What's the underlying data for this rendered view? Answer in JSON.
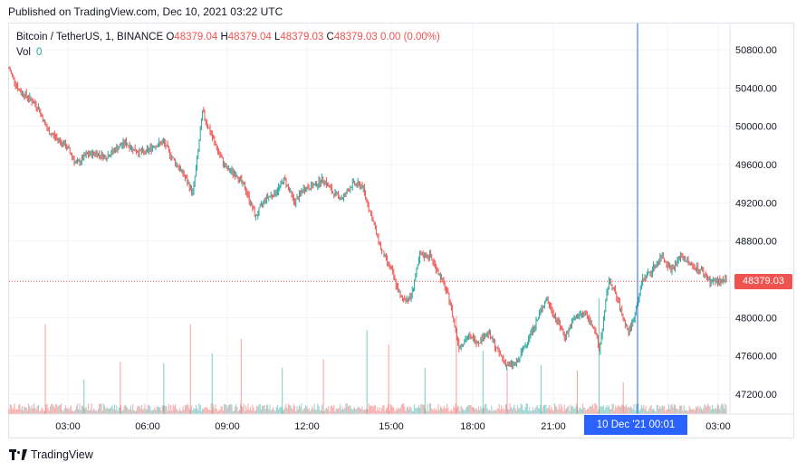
{
  "published": "Published on TradingView.com, Dec 10, 2021 03:22 UTC",
  "legend": {
    "symbol": "Bitcoin / TetherUS, 1, BINANCE",
    "o_label": "O",
    "o": "48379.04",
    "h_label": "H",
    "h": "48379.04",
    "l_label": "L",
    "l": "48379.03",
    "c_label": "C",
    "c": "48379.03",
    "change": "0.00 (0.00%)"
  },
  "volume": {
    "label": "Vol",
    "value": "0"
  },
  "last_price": "48379.03",
  "crosshair_label": "10 Dec '21   00:01",
  "brand": "TradingView",
  "colors": {
    "up": "#26a69a",
    "down": "#ef5350",
    "crosshair": "#2962ff",
    "grid": "#f0f3fa"
  },
  "chart_data": {
    "type": "candlestick",
    "yticks": [
      "47200.00",
      "47600.00",
      "48000.00",
      "48400.00",
      "48800.00",
      "49200.00",
      "49600.00",
      "50000.00",
      "50400.00",
      "50800.00"
    ],
    "xticks": [
      "03:00",
      "06:00",
      "09:00",
      "12:00",
      "15:00",
      "18:00",
      "21:00",
      "00:01",
      "03:00"
    ],
    "ylim": [
      47000,
      50950
    ],
    "price_path": [
      [
        0.0,
        50600
      ],
      [
        0.4,
        50380
      ],
      [
        0.8,
        50300
      ],
      [
        1.2,
        50200
      ],
      [
        1.6,
        49950
      ],
      [
        2.0,
        49870
      ],
      [
        2.4,
        49780
      ],
      [
        2.8,
        49600
      ],
      [
        3.2,
        49700
      ],
      [
        3.6,
        49720
      ],
      [
        4.0,
        49680
      ],
      [
        4.4,
        49760
      ],
      [
        4.8,
        49830
      ],
      [
        5.2,
        49750
      ],
      [
        5.6,
        49720
      ],
      [
        6.0,
        49800
      ],
      [
        6.4,
        49830
      ],
      [
        6.8,
        49650
      ],
      [
        7.2,
        49500
      ],
      [
        7.6,
        49300
      ],
      [
        7.8,
        49700
      ],
      [
        8.0,
        50150
      ],
      [
        8.3,
        49950
      ],
      [
        8.7,
        49700
      ],
      [
        9.0,
        49550
      ],
      [
        9.4,
        49500
      ],
      [
        9.8,
        49330
      ],
      [
        10.2,
        49050
      ],
      [
        10.6,
        49250
      ],
      [
        11.0,
        49300
      ],
      [
        11.4,
        49450
      ],
      [
        11.8,
        49200
      ],
      [
        12.2,
        49350
      ],
      [
        12.6,
        49380
      ],
      [
        13.0,
        49450
      ],
      [
        13.4,
        49300
      ],
      [
        13.8,
        49250
      ],
      [
        14.2,
        49400
      ],
      [
        14.6,
        49380
      ],
      [
        15.0,
        49050
      ],
      [
        15.4,
        48700
      ],
      [
        15.8,
        48500
      ],
      [
        16.2,
        48200
      ],
      [
        16.6,
        48200
      ],
      [
        17.0,
        48650
      ],
      [
        17.4,
        48650
      ],
      [
        17.8,
        48450
      ],
      [
        18.2,
        48200
      ],
      [
        18.6,
        47700
      ],
      [
        19.0,
        47800
      ],
      [
        19.4,
        47750
      ],
      [
        19.8,
        47850
      ],
      [
        20.2,
        47650
      ],
      [
        20.6,
        47500
      ],
      [
        21.0,
        47520
      ],
      [
        21.4,
        47750
      ],
      [
        21.8,
        47950
      ],
      [
        22.2,
        48200
      ],
      [
        22.6,
        48000
      ],
      [
        23.0,
        47800
      ],
      [
        23.4,
        48000
      ],
      [
        23.8,
        48050
      ],
      [
        24.2,
        47900
      ],
      [
        24.4,
        47650
      ],
      [
        24.6,
        48000
      ],
      [
        24.8,
        48400
      ],
      [
        25.0,
        48300
      ],
      [
        25.4,
        48000
      ],
      [
        25.6,
        47850
      ],
      [
        25.8,
        47950
      ],
      [
        26.2,
        48400
      ],
      [
        26.6,
        48500
      ],
      [
        27.0,
        48650
      ],
      [
        27.4,
        48500
      ],
      [
        27.8,
        48650
      ],
      [
        28.2,
        48550
      ],
      [
        28.6,
        48500
      ],
      [
        29.0,
        48379
      ]
    ],
    "volume_spikes": [
      [
        1.5,
        310
      ],
      [
        3.1,
        120
      ],
      [
        4.6,
        180
      ],
      [
        6.4,
        175
      ],
      [
        7.5,
        310
      ],
      [
        8.4,
        210
      ],
      [
        9.6,
        260
      ],
      [
        11.3,
        160
      ],
      [
        13.0,
        190
      ],
      [
        14.8,
        290
      ],
      [
        15.7,
        240
      ],
      [
        17.2,
        160
      ],
      [
        18.5,
        340
      ],
      [
        19.6,
        220
      ],
      [
        20.6,
        160
      ],
      [
        22.0,
        170
      ],
      [
        23.5,
        150
      ],
      [
        24.4,
        400
      ],
      [
        25.4,
        110
      ]
    ]
  }
}
